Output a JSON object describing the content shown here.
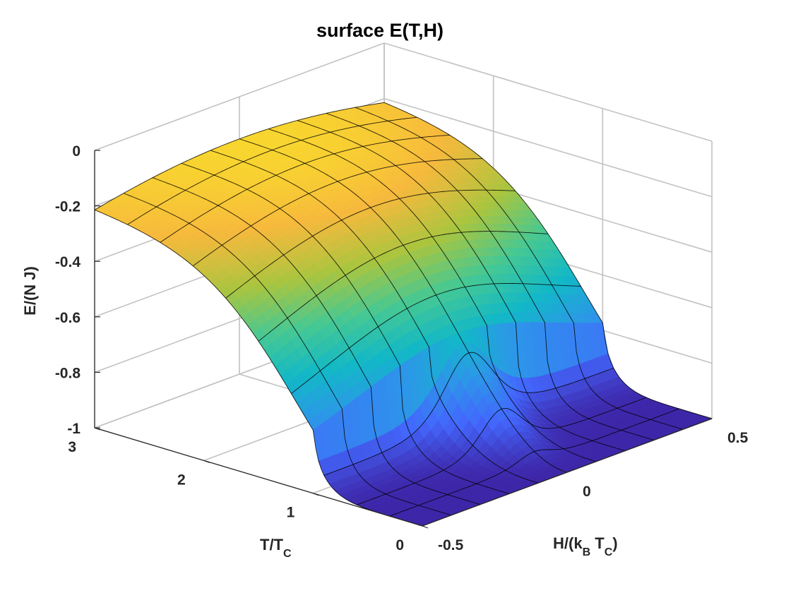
{
  "title": "surface E(T,H)",
  "chart_data": {
    "type": "surface",
    "title": "surface E(T,H)",
    "xlabel": "H/(k_B T_C)",
    "xlabel_main": "H/(k",
    "xlabel_sub": "B",
    "xlabel_mid": " T",
    "xlabel_sub2": "C",
    "xlabel_end": ")",
    "ylabel": "T/T_C",
    "ylabel_main": "T/T",
    "ylabel_sub": "C",
    "zlabel": "E/(N J)",
    "x_range": [
      -0.5,
      0.5
    ],
    "y_range": [
      0,
      3
    ],
    "z_range": [
      -1,
      0
    ],
    "x_ticks": [
      "-0.5",
      "0",
      "0.5"
    ],
    "y_ticks": [
      "0",
      "1",
      "2",
      "3"
    ],
    "z_ticks": [
      "-1",
      "-0.8",
      "-0.6",
      "-0.4",
      "-0.2",
      "0"
    ],
    "x_grid_values": [
      -0.5,
      -0.4,
      -0.3,
      -0.2,
      -0.1,
      0,
      0.1,
      0.2,
      0.3,
      0.4,
      0.5
    ],
    "y_grid_values": [
      0,
      0.3,
      0.6,
      0.9,
      1.2,
      1.5,
      1.8,
      2.1,
      2.4,
      2.7,
      3.0
    ],
    "colormap": [
      "#3e26a8",
      "#4367fd",
      "#2d96e9",
      "#12b8c7",
      "#46c893",
      "#a9c53f",
      "#f7b93d",
      "#f8de2b",
      "#f9fb15"
    ],
    "grid": true,
    "colors": {
      "grid": "#c2c2c2",
      "axis": "#262626",
      "mesh": "#000000"
    }
  }
}
